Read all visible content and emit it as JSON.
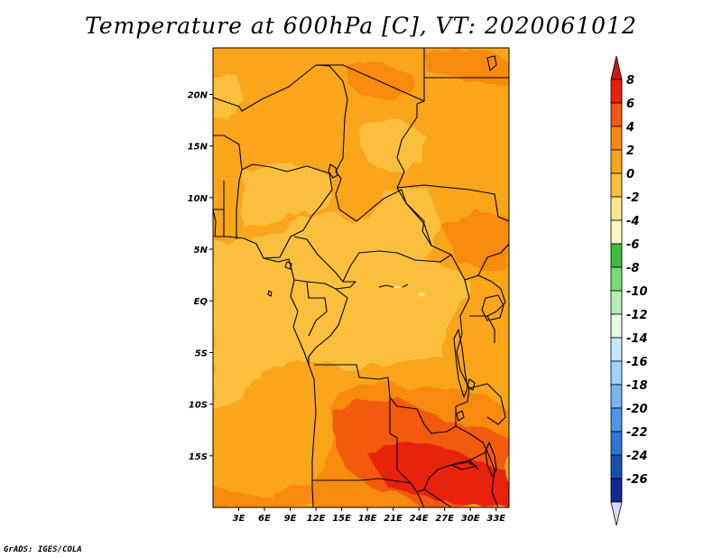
{
  "title": "Temperature at 600hPa [C], VT: 2020061012",
  "credit": "GrADS: IGES/COLA",
  "map": {
    "lon_range": [
      0,
      34.5
    ],
    "lat_range": [
      -20,
      24.5
    ],
    "x_ticks": [
      {
        "value": 3,
        "label": "3E"
      },
      {
        "value": 6,
        "label": "6E"
      },
      {
        "value": 9,
        "label": "9E"
      },
      {
        "value": 12,
        "label": "12E"
      },
      {
        "value": 15,
        "label": "15E"
      },
      {
        "value": 18,
        "label": "18E"
      },
      {
        "value": 21,
        "label": "21E"
      },
      {
        "value": 24,
        "label": "24E"
      },
      {
        "value": 27,
        "label": "27E"
      },
      {
        "value": 30,
        "label": "30E"
      },
      {
        "value": 33,
        "label": "33E"
      }
    ],
    "y_ticks": [
      {
        "value": 20,
        "label": "20N"
      },
      {
        "value": 15,
        "label": "15N"
      },
      {
        "value": 10,
        "label": "10N"
      },
      {
        "value": 5,
        "label": "5N"
      },
      {
        "value": 0,
        "label": "EQ"
      },
      {
        "value": -5,
        "label": "5S"
      },
      {
        "value": -10,
        "label": "10S"
      },
      {
        "value": -15,
        "label": "15S"
      }
    ]
  },
  "colorbar": {
    "labels": [
      "8",
      "6",
      "4",
      "2",
      "0",
      "-2",
      "-4",
      "-6",
      "-8",
      "-10",
      "-12",
      "-14",
      "-16",
      "-18",
      "-20",
      "-22",
      "-24",
      "-26"
    ],
    "colors": [
      "#e8200f",
      "#f25a0c",
      "#f88a10",
      "#faa51a",
      "#fac03c",
      "#fde68a",
      "#fef8c0",
      "#3cbe3c",
      "#78dc78",
      "#b4f0b4",
      "#e6fae6",
      "#c8e6fa",
      "#a0d2fa",
      "#78b4f0",
      "#4b96e6",
      "#2d78d2",
      "#1450b4",
      "#0c2a90"
    ],
    "top_arrow_color": "#c81a12",
    "bottom_arrow_color": "#dcdcf8"
  }
}
